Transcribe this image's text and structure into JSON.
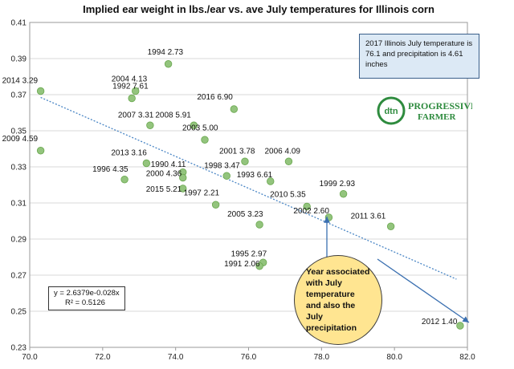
{
  "chart_data": {
    "type": "scatter",
    "title": "Implied ear weight in lbs./ear vs. ave July temperatures for Illinois corn",
    "xlim": [
      70.0,
      82.0
    ],
    "ylim": [
      0.23,
      0.41
    ],
    "x_ticks": [
      "70.0",
      "72.0",
      "74.0",
      "76.0",
      "78.0",
      "80.0",
      "82.0"
    ],
    "y_ticks": [
      "0.23",
      "0.25",
      "0.27",
      "0.29",
      "0.31",
      "0.33",
      "0.35",
      "0.37",
      "0.39",
      "0.41"
    ],
    "grid": "horizontal",
    "point_color": "#93c47d",
    "trendline_color": "#4a86c5",
    "points": [
      {
        "year": "2014",
        "precip": "3.29",
        "x": 70.3,
        "y": 0.372
      },
      {
        "year": "2009",
        "precip": "4.59",
        "x": 70.3,
        "y": 0.339
      },
      {
        "year": "1994",
        "precip": "2.73",
        "x": 73.8,
        "y": 0.387
      },
      {
        "year": "2004",
        "precip": "4.13",
        "x": 72.9,
        "y": 0.372
      },
      {
        "year": "1992",
        "precip": "7.61",
        "x": 72.8,
        "y": 0.368
      },
      {
        "year": "2007",
        "precip": "3.31",
        "x": 73.3,
        "y": 0.353
      },
      {
        "year": "2008",
        "precip": "5.91",
        "x": 74.5,
        "y": 0.353
      },
      {
        "year": "2016",
        "precip": "6.90",
        "x": 75.6,
        "y": 0.362
      },
      {
        "year": "2003",
        "precip": "5.00",
        "x": 74.8,
        "y": 0.345
      },
      {
        "year": "2013",
        "precip": "3.16",
        "x": 73.2,
        "y": 0.332
      },
      {
        "year": "1996",
        "precip": "4.35",
        "x": 72.6,
        "y": 0.323
      },
      {
        "year": "1990",
        "precip": "4.11",
        "x": 74.2,
        "y": 0.327
      },
      {
        "year": "2000",
        "precip": "4.36",
        "x": 74.2,
        "y": 0.324
      },
      {
        "year": "2015",
        "precip": "5.21",
        "x": 74.2,
        "y": 0.318
      },
      {
        "year": "1998",
        "precip": "3.47",
        "x": 75.4,
        "y": 0.325
      },
      {
        "year": "2001",
        "precip": "3.78",
        "x": 75.9,
        "y": 0.333
      },
      {
        "year": "2006",
        "precip": "4.09",
        "x": 77.1,
        "y": 0.333
      },
      {
        "year": "1993",
        "precip": "6.61",
        "x": 76.6,
        "y": 0.322
      },
      {
        "year": "1997",
        "precip": "2.21",
        "x": 75.1,
        "y": 0.309
      },
      {
        "year": "1999",
        "precip": "2.93",
        "x": 78.6,
        "y": 0.315
      },
      {
        "year": "2010",
        "precip": "5.35",
        "x": 77.6,
        "y": 0.308
      },
      {
        "year": "2002",
        "precip": "2.60",
        "x": 78.2,
        "y": 0.302
      },
      {
        "year": "2005",
        "precip": "3.23",
        "x": 76.3,
        "y": 0.298
      },
      {
        "year": "2011",
        "precip": "3.61",
        "x": 79.9,
        "y": 0.297
      },
      {
        "year": "1995",
        "precip": "2.97",
        "x": 76.4,
        "y": 0.277
      },
      {
        "year": "1991",
        "precip": "2.06",
        "x": 76.3,
        "y": 0.275
      },
      {
        "year": "2012",
        "precip": "1.40",
        "x": 81.8,
        "y": 0.242
      }
    ],
    "trendline": {
      "type": "exponential",
      "a": 2.6379,
      "b": -0.028
    },
    "equation_text": "y = 2.6379e-0.028x",
    "r2_text": "R² = 0.5126"
  },
  "annotations": {
    "info_box": "2017 Illinois July temperature is 76.1 and precipitation is 4.61 inches",
    "bubble": "Year associated with July temperature and also the July precipitation"
  },
  "logo": {
    "mark": "dtn",
    "line1": "PROGRESSIVE",
    "line2": "FARMER"
  }
}
